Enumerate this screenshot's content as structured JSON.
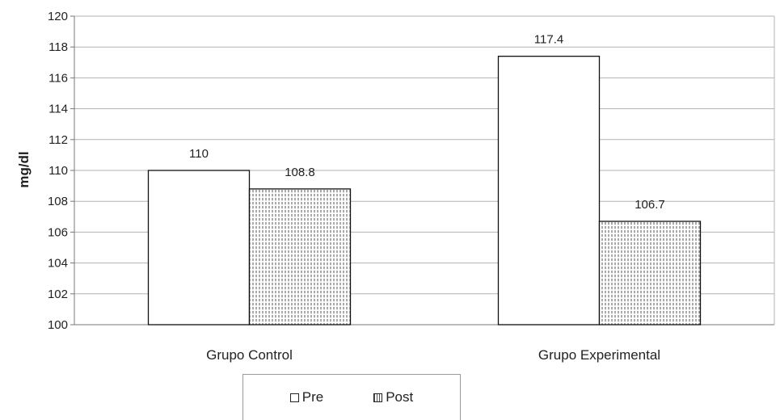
{
  "chart_data": {
    "type": "bar",
    "title": "",
    "xlabel": "",
    "ylabel": "mg/dl",
    "ylim": [
      100,
      120
    ],
    "yticks": [
      100,
      102,
      104,
      106,
      108,
      110,
      112,
      114,
      116,
      118,
      120
    ],
    "grid": true,
    "legend_position": "bottom",
    "categories": [
      "Grupo Control",
      "Grupo Experimental"
    ],
    "series": [
      {
        "name": "Pre",
        "values": [
          110,
          117.4
        ],
        "labels": [
          "110",
          "117.4"
        ],
        "fill": "#ffffff",
        "pattern": "none"
      },
      {
        "name": "Post",
        "values": [
          108.8,
          106.7
        ],
        "labels": [
          "108.8",
          "106.7"
        ],
        "fill": "#ffffff",
        "pattern": "dotted-vertical"
      }
    ]
  },
  "colors": {
    "bar_stroke": "#111111",
    "grid": "#b3b3b3",
    "axis": "#777777",
    "pattern": "#555555"
  }
}
